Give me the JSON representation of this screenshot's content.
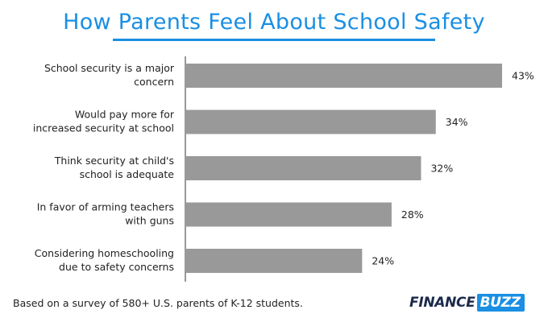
{
  "header": {
    "title": "How Parents Feel About School Safety"
  },
  "chart_data": {
    "type": "bar",
    "orientation": "horizontal",
    "title": "How Parents Feel About School Safety",
    "categories": [
      [
        "School security is a major",
        "concern"
      ],
      [
        "Would pay more for",
        "increased security at school"
      ],
      [
        "Think security at child's",
        "school is adequate"
      ],
      [
        "In favor of arming teachers",
        "with guns"
      ],
      [
        "Considering homeschooling",
        "due to safety concerns"
      ]
    ],
    "values": [
      43,
      34,
      32,
      28,
      24
    ],
    "value_labels": [
      "43%",
      "34%",
      "32%",
      "28%",
      "24%"
    ],
    "unit": "%",
    "xlim": [
      0,
      45
    ],
    "grid": false,
    "bar_color": "#999999"
  },
  "footer": {
    "note": "Based on a survey of 580+ U.S. parents of K-12 students.",
    "logo_part1": "FINANCE",
    "logo_part2": "BUZZ"
  },
  "colors": {
    "accent": "#1a8fe3",
    "bar": "#999999",
    "logo_dark": "#1b2a4a"
  }
}
